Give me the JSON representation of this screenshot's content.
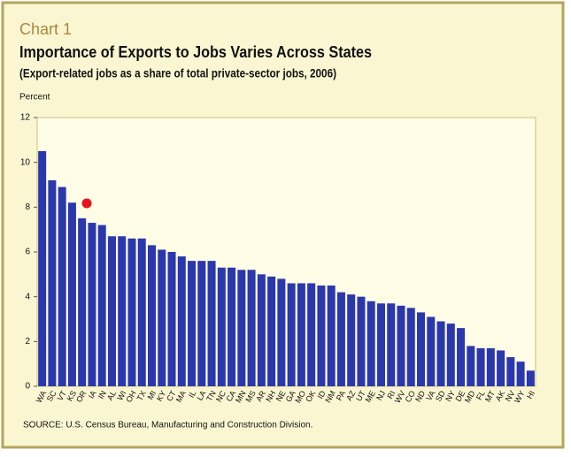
{
  "chart_data": {
    "type": "bar",
    "label": "Chart 1",
    "title": "Importance of Exports to Jobs Varies Across States",
    "subtitle": "(Export-related jobs as a share of total private-sector jobs, 2006)",
    "y_label": "Percent",
    "source": "SOURCE: U.S. Census Bureau, Manufacturing and Construction Division.",
    "categories": [
      "WA",
      "SC",
      "VT",
      "KS",
      "OR",
      "IA",
      "IN",
      "AL",
      "WI",
      "OH",
      "TX",
      "MI",
      "KY",
      "CT",
      "MA",
      "IL",
      "LA",
      "TN",
      "NC",
      "CA",
      "MN",
      "MS",
      "AR",
      "NH",
      "NE",
      "GA",
      "MO",
      "OK",
      "ID",
      "NM",
      "PA",
      "AZ",
      "UT",
      "ME",
      "NJ",
      "RI",
      "WV",
      "CO",
      "ND",
      "VA",
      "SD",
      "NY",
      "DE",
      "MD",
      "FL",
      "MT",
      "AK",
      "NV",
      "WY",
      "HI"
    ],
    "values": [
      10.5,
      9.2,
      8.9,
      8.2,
      7.5,
      7.3,
      7.2,
      6.7,
      6.7,
      6.6,
      6.6,
      6.3,
      6.1,
      6.0,
      5.8,
      5.6,
      5.6,
      5.6,
      5.3,
      5.3,
      5.2,
      5.2,
      5.0,
      4.9,
      4.8,
      4.6,
      4.6,
      4.6,
      4.5,
      4.5,
      4.2,
      4.1,
      4.0,
      3.8,
      3.7,
      3.7,
      3.6,
      3.5,
      3.3,
      3.1,
      2.9,
      2.8,
      2.6,
      1.8,
      1.7,
      1.7,
      1.6,
      1.3,
      1.1,
      0.7
    ],
    "color": "#2b38ad",
    "ylim": [
      0,
      12
    ],
    "yticks": [
      0,
      2,
      4,
      6,
      8,
      10,
      12
    ],
    "grid": false
  }
}
